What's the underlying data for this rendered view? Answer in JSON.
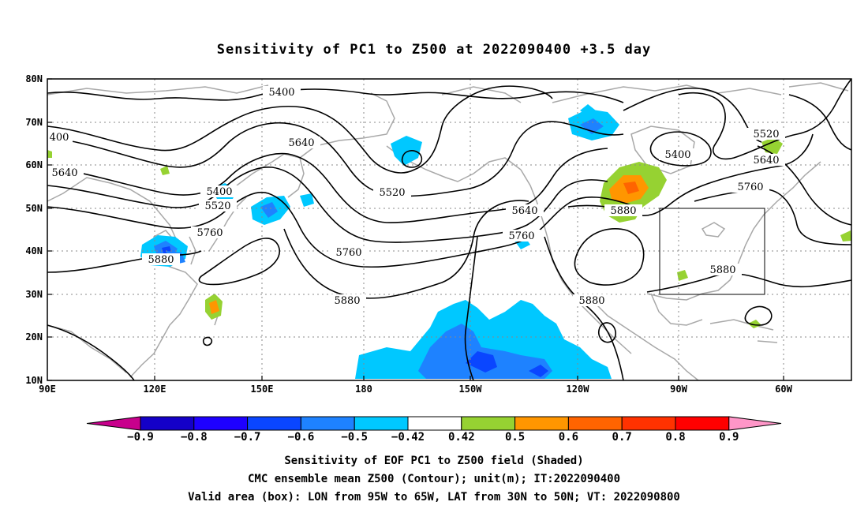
{
  "title": "Sensitivity of PC1 to Z500 at 2022090400 +3.5 day",
  "lat_labels": [
    "80N",
    "70N",
    "60N",
    "50N",
    "40N",
    "30N",
    "20N",
    "10N"
  ],
  "lon_labels": [
    "90E",
    "120E",
    "150E",
    "180",
    "150W",
    "120W",
    "90W",
    "60W"
  ],
  "contour_labels": [
    {
      "text": "5400"
    },
    {
      "text": "5640"
    },
    {
      "text": "5400"
    },
    {
      "text": "5520"
    },
    {
      "text": "5760"
    },
    {
      "text": "5880"
    },
    {
      "text": "5640"
    },
    {
      "text": "5520"
    },
    {
      "text": "5760"
    },
    {
      "text": "5880"
    },
    {
      "text": "5640"
    },
    {
      "text": "5760"
    },
    {
      "text": "5880"
    },
    {
      "text": "5880"
    },
    {
      "text": "5400"
    },
    {
      "text": "5520"
    },
    {
      "text": "5640"
    },
    {
      "text": "5760"
    },
    {
      "text": "5880"
    },
    {
      "text": "400"
    },
    {
      "text": "5640"
    }
  ],
  "colorbar": {
    "labels": [
      "−0.9",
      "−0.8",
      "−0.7",
      "−0.6",
      "−0.5",
      "−0.42",
      "0.42",
      "0.5",
      "0.6",
      "0.7",
      "0.8",
      "0.9"
    ],
    "colors": [
      "#c8008c",
      "#1400c8",
      "#1e00ff",
      "#0a46ff",
      "#1e82ff",
      "#00c8ff",
      "#ffffff",
      "#96d232",
      "#ff9600",
      "#ff6400",
      "#ff3200",
      "#ff0000",
      "#ff96c8"
    ]
  },
  "caption": {
    "line1": "Sensitivity of EOF PC1 to Z500 field (Shaded)",
    "line2": "CMC ensemble mean Z500 (Contour); unit(m); IT:2022090400",
    "line3": "Valid area (box): LON from 95W to 65W, LAT from 30N to 50N; VT: 2022090800"
  }
}
